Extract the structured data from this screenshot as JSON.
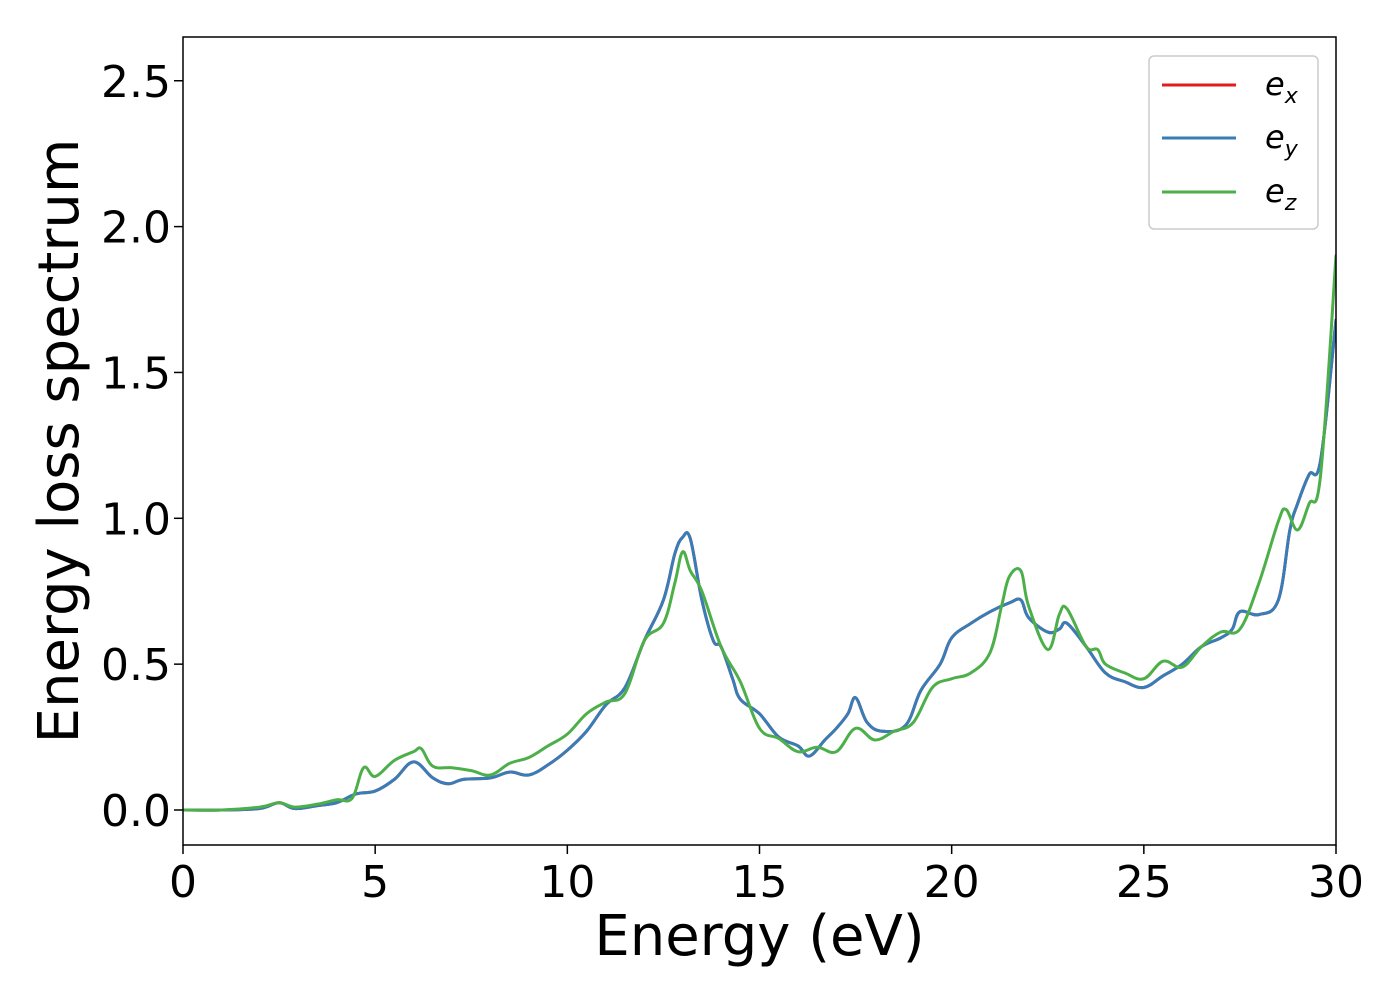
{
  "chart_data": {
    "type": "line",
    "xlabel": "Energy (eV)",
    "ylabel": "Energy loss spectrum",
    "xlim": [
      0,
      30
    ],
    "ylim": [
      -0.12,
      2.65
    ],
    "xticks": [
      0,
      5,
      10,
      15,
      20,
      25,
      30
    ],
    "xtick_labels": [
      "0",
      "5",
      "10",
      "15",
      "20",
      "25",
      "30"
    ],
    "yticks": [
      0.0,
      0.5,
      1.0,
      1.5,
      2.0,
      2.5
    ],
    "ytick_labels": [
      "0.0",
      "0.5",
      "1.0",
      "1.5",
      "2.0",
      "2.5"
    ],
    "grid": false,
    "legend_position": "top-right",
    "series": [
      {
        "name": "e_x",
        "label_main": "e",
        "label_sub": "x",
        "color": "#e41a1c",
        "x": [
          0,
          1,
          2,
          2.5,
          2.9,
          3.5,
          4.0,
          4.5,
          5.0,
          5.5,
          6.0,
          6.5,
          6.9,
          7.3,
          8.0,
          8.5,
          9.0,
          9.5,
          10.0,
          10.5,
          11.0,
          11.5,
          12.0,
          12.5,
          12.8,
          13.0,
          13.2,
          13.5,
          13.8,
          14.0,
          14.3,
          14.5,
          15.0,
          15.5,
          16.0,
          16.3,
          16.7,
          17.0,
          17.3,
          17.5,
          17.8,
          18.2,
          18.8,
          19.2,
          19.7,
          20.0,
          20.5,
          21.0,
          21.5,
          21.8,
          22.0,
          22.5,
          22.8,
          23.0,
          23.5,
          24.0,
          24.5,
          25.0,
          25.5,
          26.0,
          26.5,
          27.0,
          27.3,
          27.5,
          28.0,
          28.5,
          28.8,
          29.0,
          29.3,
          29.6,
          30.0
        ],
        "y": [
          0.0,
          0.0,
          0.005,
          0.025,
          0.005,
          0.015,
          0.025,
          0.055,
          0.065,
          0.105,
          0.165,
          0.11,
          0.09,
          0.105,
          0.11,
          0.13,
          0.12,
          0.155,
          0.205,
          0.27,
          0.36,
          0.42,
          0.58,
          0.72,
          0.88,
          0.935,
          0.93,
          0.72,
          0.58,
          0.56,
          0.45,
          0.38,
          0.33,
          0.25,
          0.22,
          0.185,
          0.24,
          0.28,
          0.33,
          0.385,
          0.3,
          0.27,
          0.29,
          0.41,
          0.5,
          0.59,
          0.64,
          0.68,
          0.71,
          0.72,
          0.66,
          0.61,
          0.62,
          0.64,
          0.56,
          0.47,
          0.44,
          0.42,
          0.46,
          0.5,
          0.56,
          0.59,
          0.62,
          0.68,
          0.67,
          0.72,
          0.96,
          1.05,
          1.15,
          1.2,
          1.68
        ]
      },
      {
        "name": "e_y",
        "label_main": "e",
        "label_sub": "y",
        "color": "#377eb8",
        "x": [
          0,
          1,
          2,
          2.5,
          2.9,
          3.5,
          4.0,
          4.5,
          5.0,
          5.5,
          6.0,
          6.5,
          6.9,
          7.3,
          8.0,
          8.5,
          9.0,
          9.5,
          10.0,
          10.5,
          11.0,
          11.5,
          12.0,
          12.5,
          12.8,
          13.0,
          13.2,
          13.5,
          13.8,
          14.0,
          14.3,
          14.5,
          15.0,
          15.5,
          16.0,
          16.3,
          16.7,
          17.0,
          17.3,
          17.5,
          17.8,
          18.2,
          18.8,
          19.2,
          19.7,
          20.0,
          20.5,
          21.0,
          21.5,
          21.8,
          22.0,
          22.5,
          22.8,
          23.0,
          23.5,
          24.0,
          24.5,
          25.0,
          25.5,
          26.0,
          26.5,
          27.0,
          27.3,
          27.5,
          28.0,
          28.5,
          28.8,
          29.0,
          29.3,
          29.6,
          30.0
        ],
        "y": [
          0.0,
          0.0,
          0.005,
          0.025,
          0.005,
          0.015,
          0.025,
          0.055,
          0.065,
          0.105,
          0.165,
          0.11,
          0.09,
          0.105,
          0.11,
          0.13,
          0.12,
          0.155,
          0.205,
          0.27,
          0.36,
          0.42,
          0.58,
          0.72,
          0.88,
          0.935,
          0.93,
          0.72,
          0.58,
          0.56,
          0.45,
          0.38,
          0.33,
          0.25,
          0.22,
          0.185,
          0.24,
          0.28,
          0.33,
          0.385,
          0.3,
          0.27,
          0.29,
          0.41,
          0.5,
          0.59,
          0.64,
          0.68,
          0.71,
          0.72,
          0.66,
          0.61,
          0.62,
          0.64,
          0.56,
          0.47,
          0.44,
          0.42,
          0.46,
          0.5,
          0.56,
          0.59,
          0.62,
          0.68,
          0.67,
          0.72,
          0.96,
          1.05,
          1.15,
          1.2,
          1.68
        ]
      },
      {
        "name": "e_z",
        "label_main": "e",
        "label_sub": "z",
        "color": "#4daf4a",
        "x": [
          0,
          1,
          2,
          2.5,
          2.9,
          3.5,
          4.0,
          4.4,
          4.7,
          5.0,
          5.5,
          6.0,
          6.2,
          6.5,
          7.0,
          7.5,
          8.0,
          8.5,
          9.0,
          9.5,
          10.0,
          10.5,
          11.0,
          11.5,
          12.0,
          12.5,
          12.8,
          13.0,
          13.2,
          13.5,
          14.0,
          14.5,
          15.0,
          15.5,
          16.0,
          16.5,
          17.0,
          17.5,
          18.0,
          18.5,
          19.0,
          19.5,
          20.0,
          20.5,
          21.0,
          21.3,
          21.5,
          21.8,
          22.0,
          22.5,
          22.8,
          23.0,
          23.5,
          23.8,
          24.0,
          24.5,
          25.0,
          25.5,
          26.0,
          26.5,
          27.0,
          27.5,
          28.0,
          28.5,
          28.7,
          29.0,
          29.3,
          29.6,
          30.0
        ],
        "y": [
          0.0,
          0.0,
          0.01,
          0.025,
          0.01,
          0.02,
          0.035,
          0.04,
          0.145,
          0.115,
          0.17,
          0.2,
          0.21,
          0.15,
          0.145,
          0.135,
          0.12,
          0.16,
          0.18,
          0.22,
          0.26,
          0.33,
          0.37,
          0.4,
          0.58,
          0.64,
          0.78,
          0.885,
          0.82,
          0.75,
          0.56,
          0.44,
          0.28,
          0.245,
          0.2,
          0.215,
          0.2,
          0.28,
          0.24,
          0.27,
          0.3,
          0.42,
          0.45,
          0.47,
          0.54,
          0.7,
          0.8,
          0.82,
          0.7,
          0.55,
          0.67,
          0.69,
          0.56,
          0.55,
          0.5,
          0.47,
          0.45,
          0.51,
          0.49,
          0.56,
          0.61,
          0.62,
          0.78,
          0.99,
          1.03,
          0.96,
          1.05,
          1.15,
          1.9
        ]
      }
    ]
  }
}
